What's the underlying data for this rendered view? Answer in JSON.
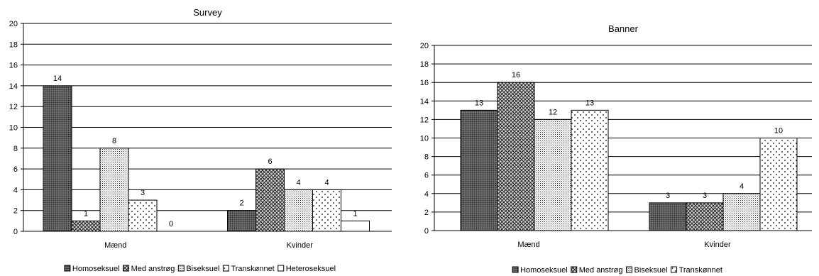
{
  "colors": {
    "bar_outline": "#000000",
    "grid": "#000000",
    "background": "#ffffff"
  },
  "chart_data": [
    {
      "type": "bar",
      "title": "Survey",
      "xlabel": "",
      "ylabel": "",
      "ylim": [
        0,
        20
      ],
      "yticks": [
        "0",
        "2",
        "4",
        "6",
        "8",
        "10",
        "12",
        "14",
        "16",
        "18",
        "20"
      ],
      "categories": [
        "Mænd",
        "Kvinder"
      ],
      "grid": true,
      "legend_position": "bottom",
      "series": [
        {
          "name": "Homoseksuel",
          "pattern": "dense-dots",
          "values": [
            14,
            2
          ]
        },
        {
          "name": "Med anstrøg",
          "pattern": "crosshatch",
          "values": [
            1,
            6
          ]
        },
        {
          "name": "Biseksuel",
          "pattern": "fine-dots",
          "values": [
            8,
            4
          ]
        },
        {
          "name": "Transkønnet",
          "pattern": "sparse-dots",
          "values": [
            3,
            4
          ]
        },
        {
          "name": "Heteroseksuel",
          "pattern": "empty",
          "values": [
            0,
            1
          ]
        }
      ]
    },
    {
      "type": "bar",
      "title": "Banner",
      "xlabel": "",
      "ylabel": "",
      "ylim": [
        0,
        20
      ],
      "yticks": [
        "0",
        "2",
        "4",
        "6",
        "8",
        "10",
        "12",
        "14",
        "16",
        "18",
        "20"
      ],
      "categories": [
        "Mænd",
        "Kvinder"
      ],
      "grid": true,
      "legend_position": "bottom",
      "series": [
        {
          "name": "Homoseksuel",
          "pattern": "dense-dots",
          "values": [
            13,
            3
          ]
        },
        {
          "name": "Med anstrøg",
          "pattern": "crosshatch",
          "values": [
            16,
            3
          ]
        },
        {
          "name": "Biseksuel",
          "pattern": "fine-dots",
          "values": [
            12,
            4
          ]
        },
        {
          "name": "Transkønnet",
          "pattern": "sparse-dots",
          "values": [
            13,
            10
          ]
        }
      ]
    }
  ]
}
